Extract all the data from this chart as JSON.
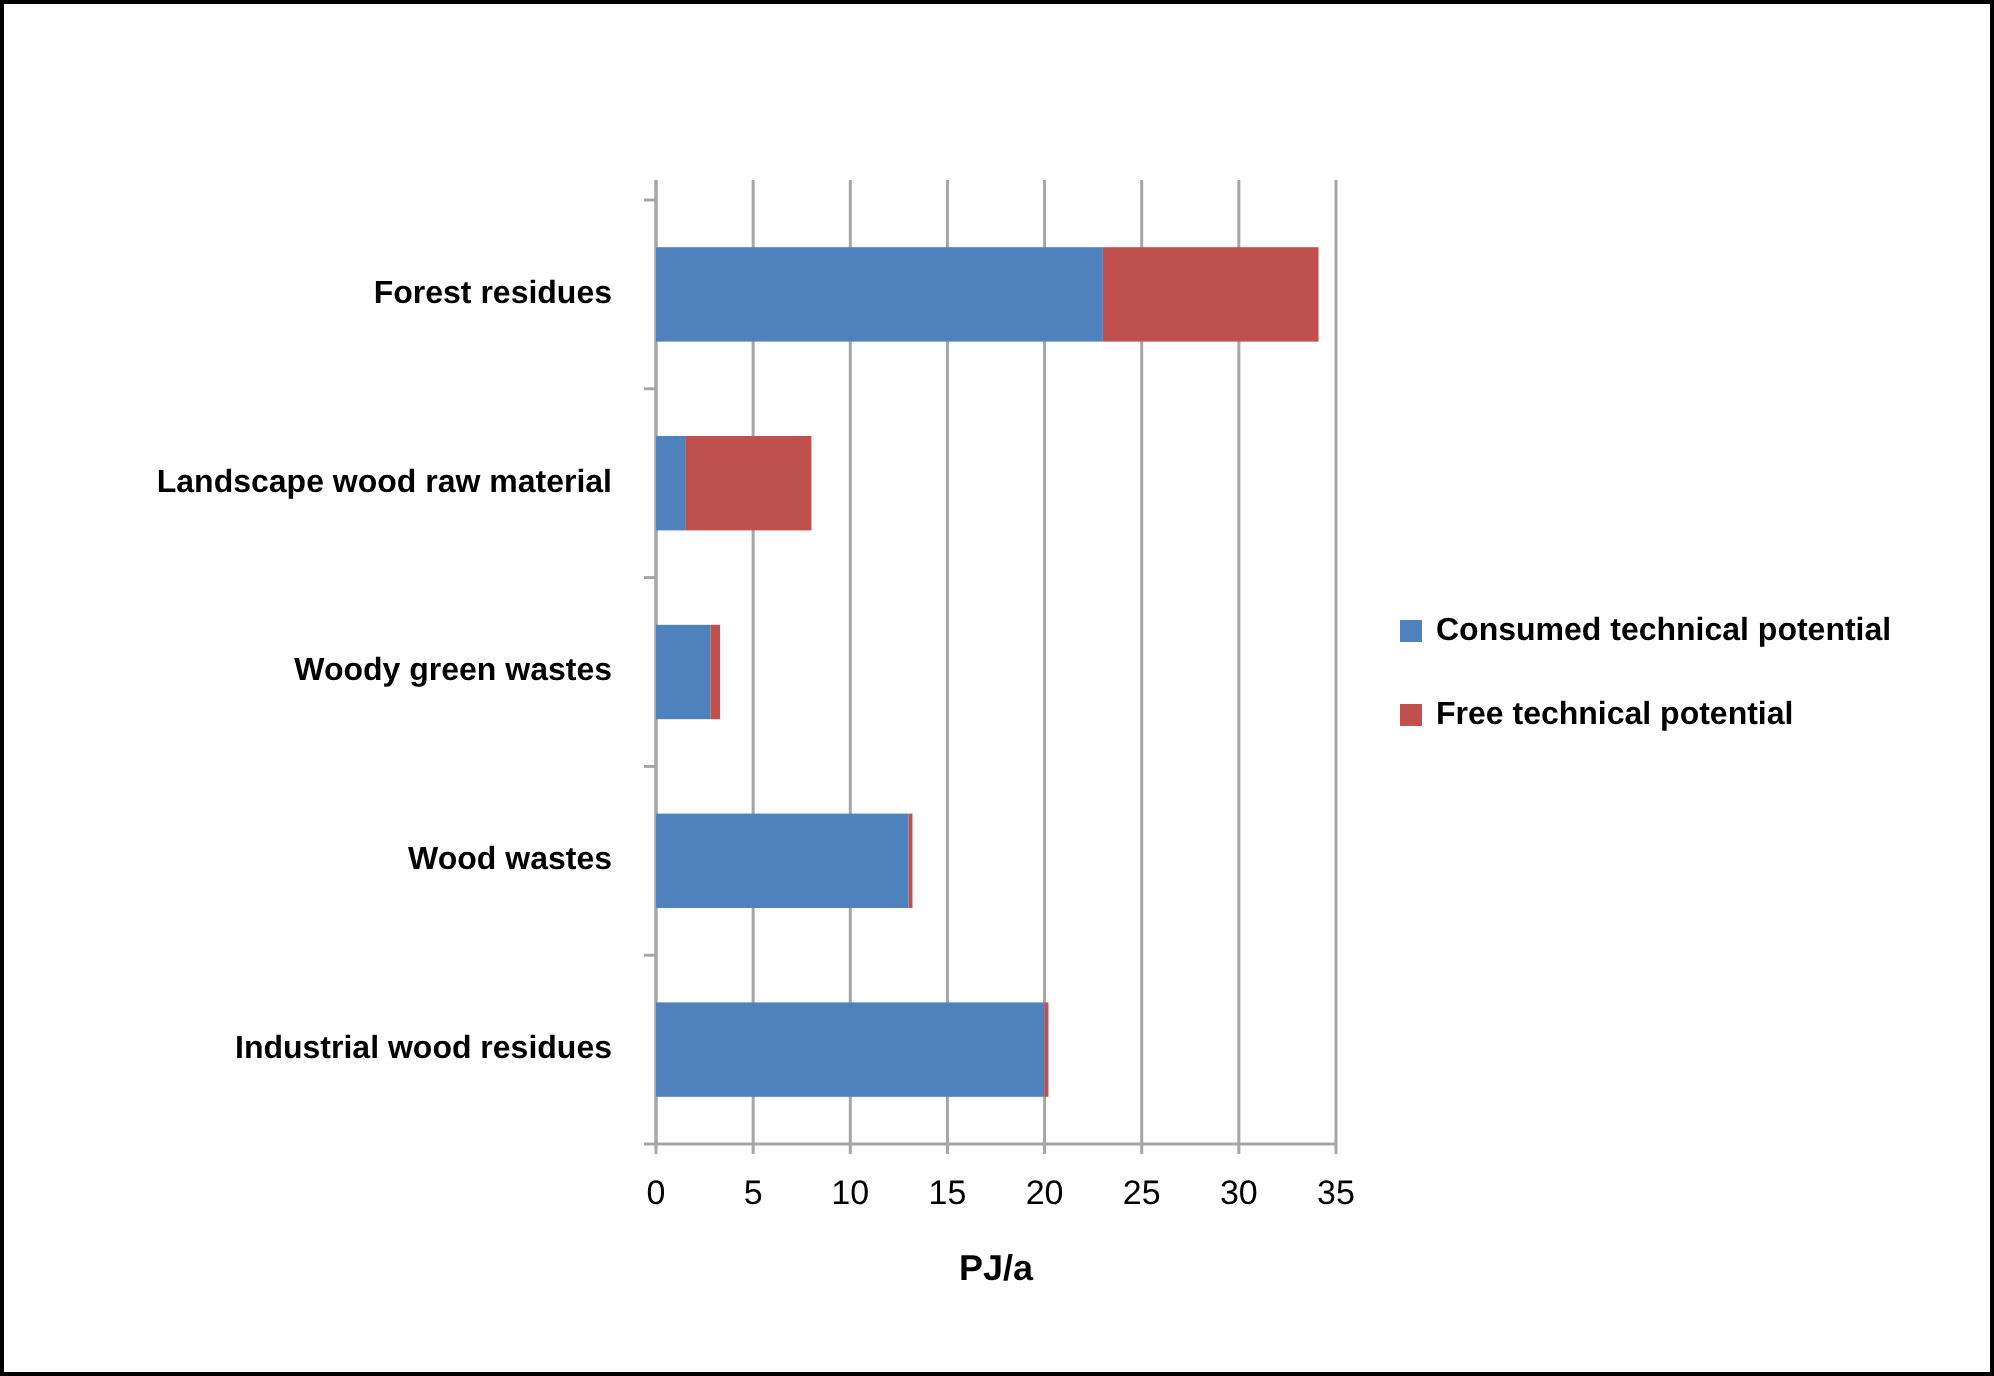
{
  "chart_data": {
    "type": "bar",
    "orientation": "horizontal",
    "stacked": true,
    "categories": [
      "Forest residues",
      "Landscape wood raw material",
      "Woody green wastes",
      "Wood wastes",
      "Industrial wood residues"
    ],
    "series": [
      {
        "name": "Consumed technical potential",
        "color": "#4f81bd",
        "values": [
          23.0,
          1.5,
          2.8,
          13.0,
          20.0
        ]
      },
      {
        "name": "Free technical potential",
        "color": "#c0504d",
        "values": [
          11.1,
          6.5,
          0.5,
          0.2,
          0.2
        ]
      }
    ],
    "xlabel": "PJ/a",
    "xlim": [
      0,
      35
    ],
    "xticks": [
      0,
      5,
      10,
      15,
      20,
      25,
      30,
      35
    ],
    "grid": "x",
    "legend": "right"
  }
}
